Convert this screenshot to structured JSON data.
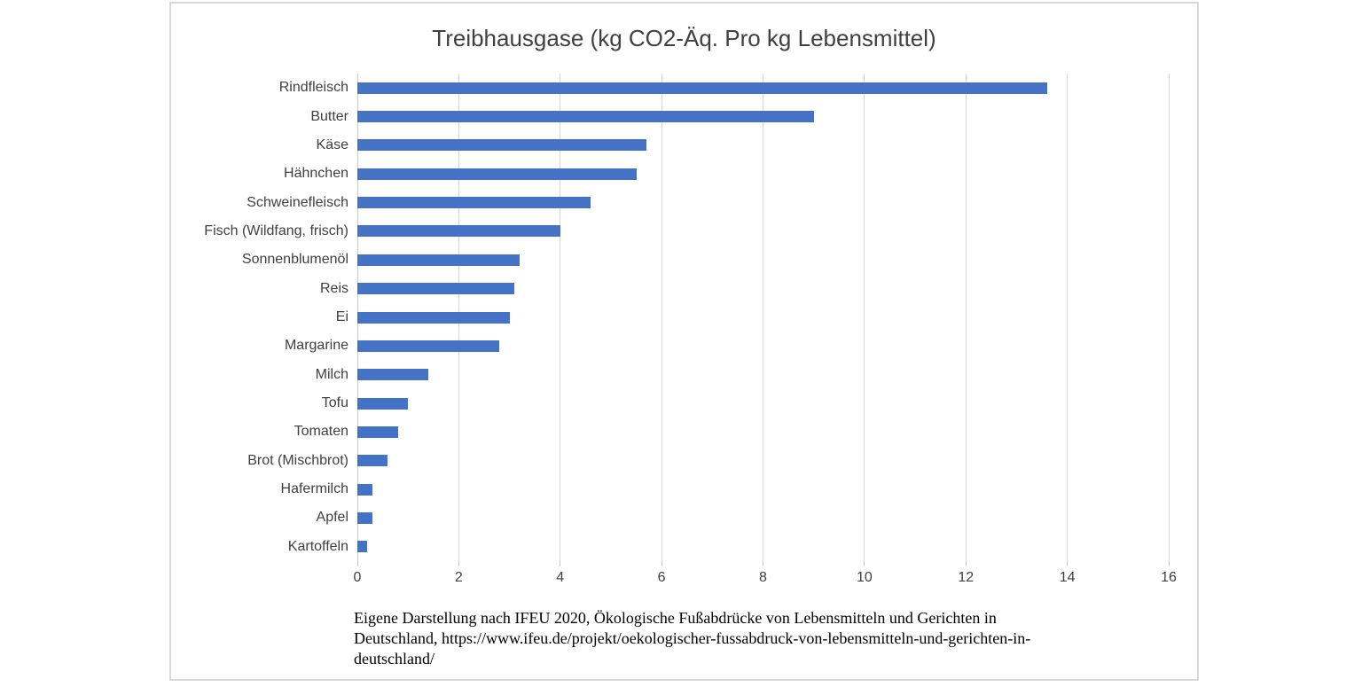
{
  "window": {
    "background": "#ffffff",
    "panel_border_color": "#d9d9d9"
  },
  "chart_data": {
    "type": "bar",
    "orientation": "horizontal",
    "title": "Treibhausgase (kg CO2-Äq. Pro kg Lebensmittel)",
    "categories": [
      "Rindfleisch",
      "Butter",
      "Käse",
      "Hähnchen",
      "Schweinefleisch",
      "Fisch (Wildfang, frisch)",
      "Sonnenblumenöl",
      "Reis",
      "Ei",
      "Margarine",
      "Milch",
      "Tofu",
      "Tomaten",
      "Brot (Mischbrot)",
      "Hafermilch",
      "Apfel",
      "Kartoffeln"
    ],
    "values": [
      13.6,
      9.0,
      5.7,
      5.5,
      4.6,
      4.0,
      3.2,
      3.1,
      3.0,
      2.8,
      1.4,
      1.0,
      0.8,
      0.6,
      0.3,
      0.3,
      0.2
    ],
    "xlabel": "",
    "ylabel": "",
    "xlim": [
      0,
      16
    ],
    "xticks": [
      0,
      2,
      4,
      6,
      8,
      10,
      12,
      14,
      16
    ],
    "grid": true,
    "legend": false,
    "bar_color": "#4472c4",
    "gridline_color": "#d6d6d6",
    "axis_line_color": "#c9c9c9",
    "title_color": "#404040",
    "tick_label_color": "#404040",
    "annotation": "Eigene Darstellung nach IFEU 2020, Ökologische Fußabdrücke von Lebensmitteln und Gerichten in Deutschland, https://www.ifeu.de/projekt/oekologischer-fussabdruck-von-lebensmitteln-und-gerichten-in-deutschland/"
  },
  "footer": {
    "text": "Eigene Darstellung nach IFEU 2020, Ökologische Fußabdrücke von Lebensmitteln und Gerichten in\nDeutschland, https://www.ifeu.de/projekt/oekologischer-fussabdruck-von-lebensmitteln-und-gerichten-in-\ndeutschland/"
  }
}
